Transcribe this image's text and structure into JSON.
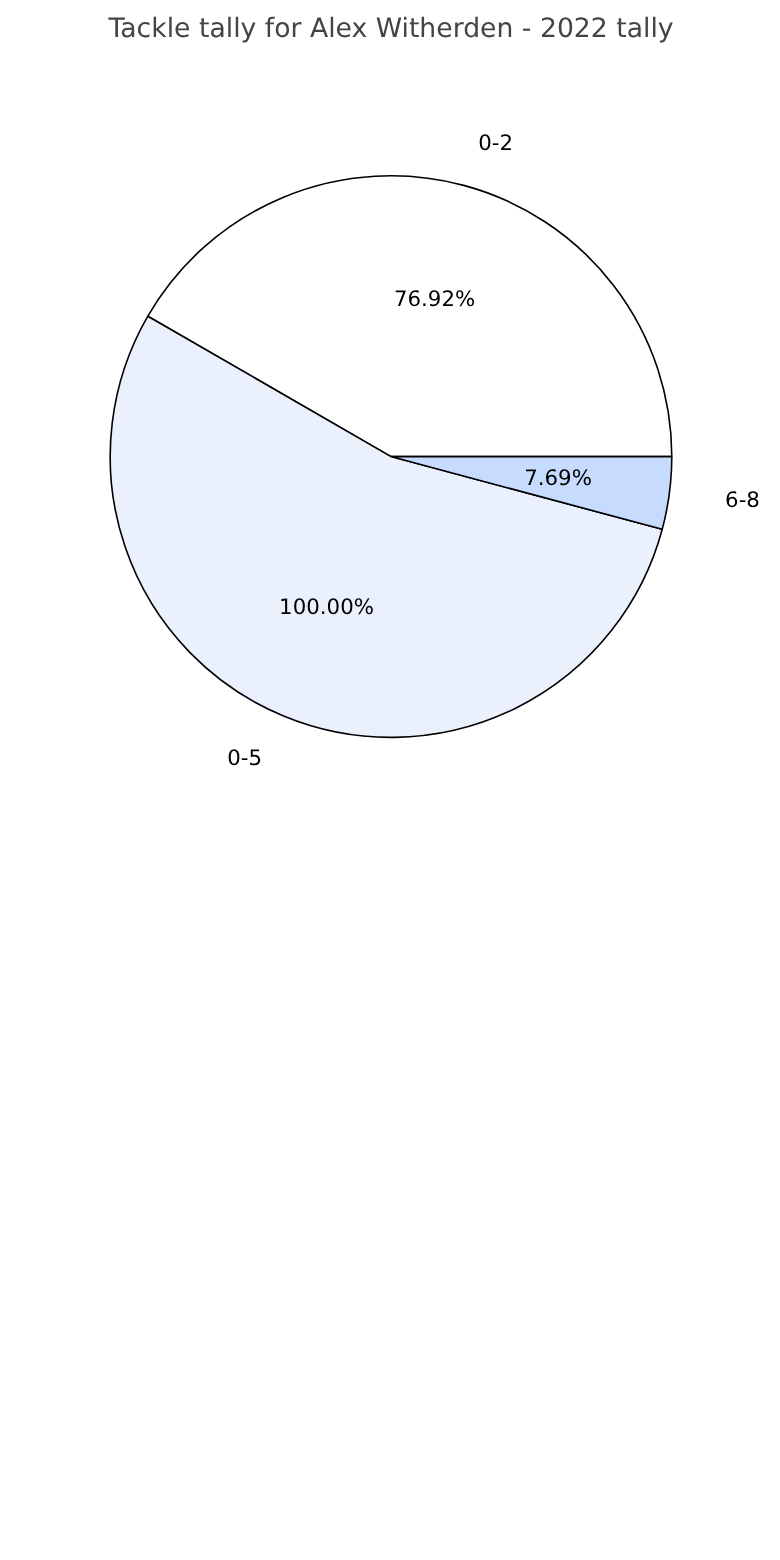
{
  "chart_data": {
    "type": "pie",
    "title": "Tackle tally for Alex Witherden - 2022 tally",
    "categories": [
      "0-2",
      "0-5",
      "6-8"
    ],
    "values": [
      76.92,
      100.0,
      7.69
    ],
    "value_labels": [
      "76.92%",
      "100.00%",
      "7.69%"
    ],
    "colors": [
      "#ffffff",
      "#eaf1fd",
      "#c6dbfe"
    ]
  }
}
